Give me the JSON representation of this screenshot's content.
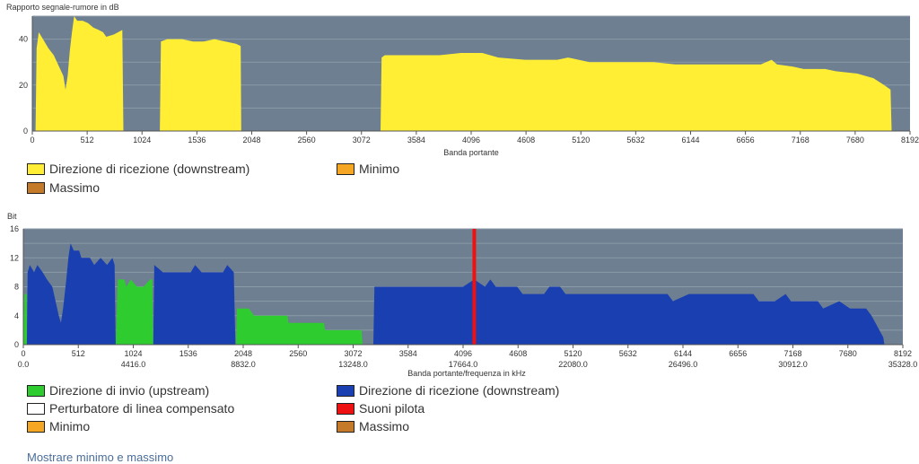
{
  "chart_data": [
    {
      "type": "area",
      "title": "Rapporto segnale-rumore in dB",
      "xlabel": "Banda portante",
      "xlim": [
        0,
        8192
      ],
      "ylim": [
        0,
        50
      ],
      "x_ticks": [
        0,
        512,
        1024,
        1536,
        2048,
        2560,
        3072,
        3584,
        4096,
        4608,
        5120,
        5632,
        6144,
        6656,
        7168,
        7680,
        8192
      ],
      "y_ticks": [
        0,
        20,
        40
      ],
      "grid": true,
      "series": [
        {
          "name": "Direzione di ricezione (downstream)",
          "color": "#ffee33",
          "points": [
            [
              0,
              0
            ],
            [
              30,
              0
            ],
            [
              40,
              36
            ],
            [
              60,
              43
            ],
            [
              100,
              40
            ],
            [
              150,
              36
            ],
            [
              200,
              33
            ],
            [
              250,
              28
            ],
            [
              290,
              24
            ],
            [
              310,
              18
            ],
            [
              330,
              24
            ],
            [
              350,
              35
            ],
            [
              370,
              43
            ],
            [
              390,
              50
            ],
            [
              420,
              48
            ],
            [
              470,
              48
            ],
            [
              520,
              47
            ],
            [
              570,
              45
            ],
            [
              620,
              44
            ],
            [
              660,
              43
            ],
            [
              690,
              41
            ],
            [
              760,
              42
            ],
            [
              840,
              44
            ],
            [
              850,
              0
            ],
            [
              1190,
              0
            ],
            [
              1200,
              39
            ],
            [
              1260,
              40
            ],
            [
              1400,
              40
            ],
            [
              1500,
              39
            ],
            [
              1600,
              39
            ],
            [
              1700,
              40
            ],
            [
              1800,
              39
            ],
            [
              1900,
              38
            ],
            [
              1945,
              37
            ],
            [
              1950,
              0
            ],
            [
              3250,
              0
            ],
            [
              3260,
              32
            ],
            [
              3290,
              33
            ],
            [
              3400,
              33
            ],
            [
              3584,
              33
            ],
            [
              3800,
              33
            ],
            [
              4000,
              34
            ],
            [
              4200,
              34
            ],
            [
              4350,
              32
            ],
            [
              4600,
              31
            ],
            [
              4900,
              31
            ],
            [
              5000,
              32
            ],
            [
              5200,
              30
            ],
            [
              5500,
              30
            ],
            [
              5632,
              30
            ],
            [
              5800,
              30
            ],
            [
              6000,
              29
            ],
            [
              6300,
              29
            ],
            [
              6600,
              29
            ],
            [
              6800,
              29
            ],
            [
              6900,
              31
            ],
            [
              6950,
              29
            ],
            [
              7100,
              28
            ],
            [
              7200,
              27
            ],
            [
              7400,
              27
            ],
            [
              7500,
              26
            ],
            [
              7700,
              25
            ],
            [
              7850,
              23
            ],
            [
              7950,
              20
            ],
            [
              8010,
              18
            ],
            [
              8020,
              0
            ]
          ]
        }
      ],
      "legend": [
        {
          "label": "Direzione di ricezione (downstream)",
          "color": "#ffee33"
        },
        {
          "label": "Minimo",
          "color": "#f5a623"
        },
        {
          "label": "Massimo",
          "color": "#c47a28"
        }
      ]
    },
    {
      "type": "area",
      "ylabel": "Bit",
      "xlabel": "Banda portante/frequenza in kHz",
      "xlim": [
        0,
        8192
      ],
      "ylim": [
        0,
        16
      ],
      "x_ticks": [
        0,
        512,
        1024,
        1536,
        2048,
        2560,
        3072,
        3584,
        4096,
        4608,
        5120,
        5632,
        6144,
        6656,
        7168,
        7680,
        8192
      ],
      "x_ticks_secondary": [
        {
          "x": 0,
          "label": "0.0"
        },
        {
          "x": 1024,
          "label": "4416.0"
        },
        {
          "x": 2048,
          "label": "8832.0"
        },
        {
          "x": 3072,
          "label": "13248.0"
        },
        {
          "x": 4096,
          "label": "17664.0"
        },
        {
          "x": 5120,
          "label": "22080.0"
        },
        {
          "x": 6144,
          "label": "26496.0"
        },
        {
          "x": 7168,
          "label": "30912.0"
        },
        {
          "x": 8192,
          "label": "35328.0"
        }
      ],
      "y_ticks": [
        0,
        4,
        8,
        12,
        16
      ],
      "grid": true,
      "series": [
        {
          "name": "Direzione di invio (upstream)",
          "color": "#2fcc2f",
          "points": [
            [
              0,
              0
            ],
            [
              10,
              7
            ],
            [
              32,
              7
            ],
            [
              33,
              0
            ],
            [
              860,
              0
            ],
            [
              880,
              9
            ],
            [
              940,
              9
            ],
            [
              960,
              8
            ],
            [
              1000,
              9
            ],
            [
              1060,
              8
            ],
            [
              1120,
              8
            ],
            [
              1180,
              9
            ],
            [
              1200,
              9
            ],
            [
              1210,
              0
            ],
            [
              1980,
              0
            ],
            [
              1990,
              5
            ],
            [
              2100,
              5
            ],
            [
              2150,
              4
            ],
            [
              2460,
              4
            ],
            [
              2470,
              3
            ],
            [
              2800,
              3
            ],
            [
              2810,
              2
            ],
            [
              3150,
              2
            ],
            [
              3160,
              0
            ]
          ]
        },
        {
          "name": "Direzione di ricezione (downstream)",
          "color": "#1a3fb0",
          "points": [
            [
              33,
              0
            ],
            [
              40,
              10
            ],
            [
              60,
              11
            ],
            [
              100,
              10
            ],
            [
              130,
              11
            ],
            [
              180,
              10
            ],
            [
              220,
              9
            ],
            [
              270,
              8
            ],
            [
              300,
              6
            ],
            [
              330,
              4
            ],
            [
              350,
              3
            ],
            [
              370,
              5
            ],
            [
              400,
              9
            ],
            [
              420,
              12
            ],
            [
              440,
              14
            ],
            [
              470,
              13
            ],
            [
              520,
              13
            ],
            [
              540,
              12
            ],
            [
              620,
              12
            ],
            [
              660,
              11
            ],
            [
              720,
              12
            ],
            [
              780,
              11
            ],
            [
              830,
              12
            ],
            [
              850,
              11
            ],
            [
              860,
              0
            ],
            [
              1210,
              0
            ],
            [
              1220,
              11
            ],
            [
              1300,
              10
            ],
            [
              1560,
              10
            ],
            [
              1600,
              11
            ],
            [
              1660,
              10
            ],
            [
              1860,
              10
            ],
            [
              1900,
              11
            ],
            [
              1960,
              10
            ],
            [
              1975,
              0
            ],
            [
              3260,
              0
            ],
            [
              3270,
              8
            ],
            [
              3584,
              8
            ],
            [
              4096,
              8
            ],
            [
              4200,
              9
            ],
            [
              4300,
              8
            ],
            [
              4350,
              9
            ],
            [
              4400,
              8
            ],
            [
              4600,
              8
            ],
            [
              4650,
              7
            ],
            [
              4850,
              7
            ],
            [
              4900,
              8
            ],
            [
              5000,
              8
            ],
            [
              5050,
              7
            ],
            [
              5400,
              7
            ],
            [
              5632,
              7
            ],
            [
              6000,
              7
            ],
            [
              6050,
              6
            ],
            [
              6200,
              7
            ],
            [
              6300,
              7
            ],
            [
              6500,
              7
            ],
            [
              6800,
              7
            ],
            [
              6850,
              6
            ],
            [
              7000,
              6
            ],
            [
              7100,
              7
            ],
            [
              7150,
              6
            ],
            [
              7400,
              6
            ],
            [
              7450,
              5
            ],
            [
              7600,
              6
            ],
            [
              7700,
              5
            ],
            [
              7850,
              5
            ],
            [
              7900,
              4
            ],
            [
              8010,
              1
            ],
            [
              8020,
              0
            ]
          ]
        },
        {
          "name": "Suoni pilota",
          "color": "#ee1111",
          "x": 4200
        }
      ],
      "legend": [
        {
          "label": "Direzione di invio (upstream)",
          "color": "#2fcc2f"
        },
        {
          "label": "Direzione di ricezione (downstream)",
          "color": "#1a3fb0"
        },
        {
          "label": "Perturbatore di linea compensato",
          "color": "#ffffff"
        },
        {
          "label": "Suoni pilota",
          "color": "#ee1111"
        },
        {
          "label": "Minimo",
          "color": "#f5a623"
        },
        {
          "label": "Massimo",
          "color": "#c47a28"
        }
      ]
    }
  ],
  "link_label": "Mostrare minimo e massimo"
}
